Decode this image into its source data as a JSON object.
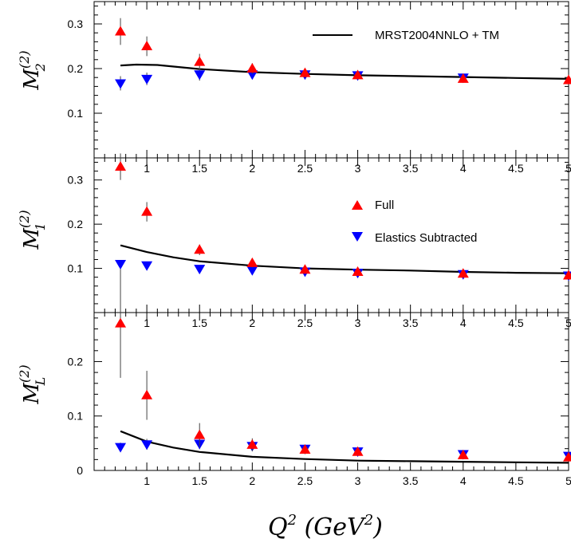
{
  "chart_data": {
    "type": "scatter",
    "xlabel": {
      "main": "Q",
      "sup": "2",
      "unit_open": " (GeV",
      "unit_sup": "2",
      "unit_close": ")"
    },
    "xlim": [
      0.5,
      5.0
    ],
    "x_ticks": [
      "1",
      "1.5",
      "2",
      "2.5",
      "3",
      "3.5",
      "4",
      "4.5",
      "5"
    ],
    "legend": {
      "model": "MRST2004NNLO + TM",
      "full": "Full",
      "elastics_subtracted": "Elastics Subtracted"
    },
    "colors": {
      "full": "#ff0000",
      "elastics_subtracted": "#0000ff",
      "model": "#000000"
    },
    "panels": [
      {
        "id": "m2",
        "ylabel": {
          "main": "M",
          "sup": "(2)",
          "sub": "2"
        },
        "ylim": [
          0.0,
          0.35
        ],
        "y_ticks": [
          "0.1",
          "0.2",
          "0.3"
        ],
        "y_tick_values": [
          0.1,
          0.2,
          0.3
        ],
        "full": {
          "x": [
            0.75,
            1.0,
            1.5,
            2.0,
            2.5,
            3.0,
            4.0,
            5.0
          ],
          "y": [
            0.283,
            0.25,
            0.215,
            0.2,
            0.19,
            0.185,
            0.177,
            0.174
          ],
          "err": [
            0.03,
            0.022,
            0.018,
            0.012,
            0.01,
            0.008,
            0.008,
            0.008
          ]
        },
        "elastics_subtracted": {
          "x": [
            0.75,
            1.0,
            1.5,
            2.0,
            2.5,
            3.0,
            4.0
          ],
          "y": [
            0.167,
            0.177,
            0.187,
            0.187,
            0.187,
            0.185,
            0.18
          ],
          "err": [
            0.016,
            0.014,
            0.014,
            0.01,
            0.009,
            0.008,
            0.008
          ]
        },
        "model": {
          "x": [
            0.75,
            0.9,
            1.1,
            1.5,
            2.0,
            2.5,
            3.0,
            3.5,
            4.0,
            4.5,
            5.0
          ],
          "y": [
            0.207,
            0.209,
            0.208,
            0.199,
            0.192,
            0.188,
            0.185,
            0.183,
            0.181,
            0.179,
            0.177
          ]
        }
      },
      {
        "id": "m1",
        "ylabel": {
          "main": "M",
          "sup": "(2)",
          "sub": "1"
        },
        "ylim": [
          0.0,
          0.35
        ],
        "y_ticks": [
          "0.1",
          "0.2",
          "0.3"
        ],
        "y_tick_values": [
          0.1,
          0.2,
          0.3
        ],
        "full": {
          "x": [
            0.75,
            1.0,
            1.5,
            2.0,
            2.5,
            3.0,
            4.0,
            5.0
          ],
          "y": [
            0.33,
            0.228,
            0.142,
            0.112,
            0.097,
            0.092,
            0.088,
            0.084
          ],
          "err": [
            0.03,
            0.022,
            0.012,
            0.01,
            0.008,
            0.007,
            0.007,
            0.007
          ]
        },
        "elastics_subtracted": {
          "x": [
            0.75,
            1.0,
            1.5,
            2.0,
            2.5,
            3.0,
            4.0,
            5.0
          ],
          "y": [
            0.11,
            0.107,
            0.099,
            0.096,
            0.093,
            0.09,
            0.087,
            0.084
          ],
          "err": [
            0.007,
            0.006,
            0.006,
            0.006,
            0.006,
            0.006,
            0.006,
            0.006
          ]
        },
        "model": {
          "x": [
            0.75,
            1.0,
            1.25,
            1.5,
            2.0,
            2.5,
            3.0,
            3.5,
            4.0,
            4.5,
            5.0
          ],
          "y": [
            0.152,
            0.137,
            0.125,
            0.116,
            0.106,
            0.1,
            0.097,
            0.095,
            0.092,
            0.09,
            0.089
          ]
        }
      },
      {
        "id": "ml",
        "ylabel": {
          "main": "M",
          "sup": "(2)",
          "sub": "L"
        },
        "ylim": [
          0.0,
          0.29
        ],
        "y_ticks": [
          "0",
          "0.1",
          "0.2"
        ],
        "y_tick_values": [
          0.0,
          0.1,
          0.2
        ],
        "full": {
          "x": [
            0.75,
            1.0,
            1.5,
            2.0,
            2.5,
            3.0,
            4.0,
            5.0
          ],
          "y": [
            0.27,
            0.138,
            0.065,
            0.047,
            0.038,
            0.034,
            0.028,
            0.024
          ],
          "err": [
            0.1,
            0.045,
            0.022,
            0.012,
            0.008,
            0.007,
            0.007,
            0.007
          ]
        },
        "elastics_subtracted": {
          "x": [
            0.75,
            1.0,
            1.5,
            2.0,
            2.5,
            3.0,
            4.0,
            5.0
          ],
          "y": [
            0.043,
            0.048,
            0.049,
            0.045,
            0.04,
            0.035,
            0.03,
            0.027
          ],
          "err": [
            0.008,
            0.01,
            0.01,
            0.007,
            0.006,
            0.006,
            0.006,
            0.006
          ]
        },
        "model": {
          "x": [
            0.75,
            1.0,
            1.25,
            1.5,
            2.0,
            2.5,
            3.0,
            3.5,
            4.0,
            4.5,
            5.0
          ],
          "y": [
            0.072,
            0.053,
            0.042,
            0.034,
            0.025,
            0.021,
            0.018,
            0.017,
            0.016,
            0.015,
            0.014
          ]
        }
      }
    ]
  }
}
